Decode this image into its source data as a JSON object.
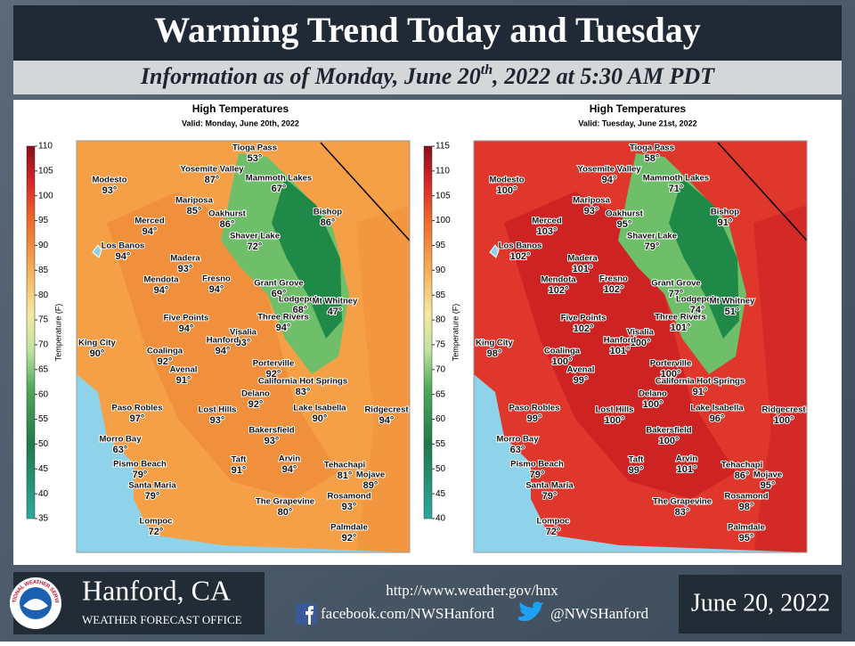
{
  "header": {
    "title": "Warming Trend Today and Tuesday",
    "subtitle_before": "Information as of Monday, June 20",
    "subtitle_sup": "th",
    "subtitle_after": ", 2022 at 5:30 AM PDT"
  },
  "panels": [
    {
      "title": "High Temperatures",
      "valid": "Valid: Monday, June 20th, 2022",
      "colorbar_label": "Temperature (F)",
      "colorbar_ticks": [
        35,
        40,
        45,
        50,
        55,
        60,
        65,
        70,
        75,
        80,
        85,
        90,
        95,
        100,
        105,
        110
      ],
      "cities": [
        {
          "name": "Tioga Pass",
          "temp": "53°"
        },
        {
          "name": "Yosemite Valley",
          "temp": "87°"
        },
        {
          "name": "Mammoth Lakes",
          "temp": "67°"
        },
        {
          "name": "Modesto",
          "temp": "93°"
        },
        {
          "name": "Mariposa",
          "temp": "85°"
        },
        {
          "name": "Oakhurst",
          "temp": "86°"
        },
        {
          "name": "Bishop",
          "temp": "86°"
        },
        {
          "name": "Merced",
          "temp": "94°"
        },
        {
          "name": "Shaver Lake",
          "temp": "72°"
        },
        {
          "name": "Los Banos",
          "temp": "94°"
        },
        {
          "name": "Madera",
          "temp": "93°"
        },
        {
          "name": "Fresno",
          "temp": "94°"
        },
        {
          "name": "Mendota",
          "temp": "94°"
        },
        {
          "name": "Grant Grove",
          "temp": "69°"
        },
        {
          "name": "Lodgepole",
          "temp": "68°"
        },
        {
          "name": "Mt Whitney",
          "temp": "47°"
        },
        {
          "name": "Five Points",
          "temp": "94°"
        },
        {
          "name": "Three Rivers",
          "temp": "94°"
        },
        {
          "name": "Visalia",
          "temp": "93°"
        },
        {
          "name": "Hanford",
          "temp": "94°"
        },
        {
          "name": "King City",
          "temp": "90°"
        },
        {
          "name": "Coalinga",
          "temp": "92°"
        },
        {
          "name": "Avenal",
          "temp": "91°"
        },
        {
          "name": "Porterville",
          "temp": "92°"
        },
        {
          "name": "California Hot Springs",
          "temp": "83°"
        },
        {
          "name": "Delano",
          "temp": "92°"
        },
        {
          "name": "Lost Hills",
          "temp": "93°"
        },
        {
          "name": "Lake Isabella",
          "temp": "90°"
        },
        {
          "name": "Ridgecrest",
          "temp": "94°"
        },
        {
          "name": "Paso Robles",
          "temp": "97°"
        },
        {
          "name": "Bakersfield",
          "temp": "93°"
        },
        {
          "name": "Morro Bay",
          "temp": "63°"
        },
        {
          "name": "Taft",
          "temp": "91°"
        },
        {
          "name": "Arvin",
          "temp": "94°"
        },
        {
          "name": "Tehachapi",
          "temp": "81°"
        },
        {
          "name": "Mojave",
          "temp": "89°"
        },
        {
          "name": "Pismo Beach",
          "temp": "79°"
        },
        {
          "name": "Santa Maria",
          "temp": "79°"
        },
        {
          "name": "The Grapevine",
          "temp": "80°"
        },
        {
          "name": "Rosamond",
          "temp": "93°"
        },
        {
          "name": "Lompoc",
          "temp": "72°"
        },
        {
          "name": "Palmdale",
          "temp": "92°"
        }
      ]
    },
    {
      "title": "High Temperatures",
      "valid": "Valid: Tuesday, June 21st, 2022",
      "colorbar_label": "Temperature (F)",
      "colorbar_ticks": [
        40,
        45,
        50,
        55,
        60,
        65,
        70,
        75,
        80,
        85,
        90,
        95,
        100,
        105,
        110,
        115
      ],
      "cities": [
        {
          "name": "Tioga Pass",
          "temp": "58°"
        },
        {
          "name": "Yosemite Valley",
          "temp": "94°"
        },
        {
          "name": "Mammoth Lakes",
          "temp": "71°"
        },
        {
          "name": "Modesto",
          "temp": "100°"
        },
        {
          "name": "Mariposa",
          "temp": "93°"
        },
        {
          "name": "Oakhurst",
          "temp": "95°"
        },
        {
          "name": "Bishop",
          "temp": "91°"
        },
        {
          "name": "Merced",
          "temp": "103°"
        },
        {
          "name": "Shaver Lake",
          "temp": "79°"
        },
        {
          "name": "Los Banos",
          "temp": "102°"
        },
        {
          "name": "Madera",
          "temp": "101°"
        },
        {
          "name": "Fresno",
          "temp": "102°"
        },
        {
          "name": "Mendota",
          "temp": "102°"
        },
        {
          "name": "Grant Grove",
          "temp": "77°"
        },
        {
          "name": "Lodgepole",
          "temp": "74°"
        },
        {
          "name": "Mt Whitney",
          "temp": "51°"
        },
        {
          "name": "Five Points",
          "temp": "102°"
        },
        {
          "name": "Three Rivers",
          "temp": "101°"
        },
        {
          "name": "Visalia",
          "temp": "100°"
        },
        {
          "name": "Hanford",
          "temp": "101°"
        },
        {
          "name": "King City",
          "temp": "98°"
        },
        {
          "name": "Coalinga",
          "temp": "100°"
        },
        {
          "name": "Avenal",
          "temp": "99°"
        },
        {
          "name": "Porterville",
          "temp": "100°"
        },
        {
          "name": "California Hot Springs",
          "temp": "91°"
        },
        {
          "name": "Delano",
          "temp": "100°"
        },
        {
          "name": "Lost Hills",
          "temp": "100°"
        },
        {
          "name": "Lake Isabella",
          "temp": "96°"
        },
        {
          "name": "Ridgecrest",
          "temp": "100°"
        },
        {
          "name": "Paso Robles",
          "temp": "99°"
        },
        {
          "name": "Bakersfield",
          "temp": "100°"
        },
        {
          "name": "Morro Bay",
          "temp": "63°"
        },
        {
          "name": "Taft",
          "temp": "99°"
        },
        {
          "name": "Arvin",
          "temp": "101°"
        },
        {
          "name": "Tehachapi",
          "temp": "86°"
        },
        {
          "name": "Mojave",
          "temp": "95°"
        },
        {
          "name": "Pismo Beach",
          "temp": "79°"
        },
        {
          "name": "Santa Maria",
          "temp": "79°"
        },
        {
          "name": "The Grapevine",
          "temp": "83°"
        },
        {
          "name": "Rosamond",
          "temp": "98°"
        },
        {
          "name": "Lompoc",
          "temp": "72°"
        },
        {
          "name": "Palmdale",
          "temp": "95°"
        }
      ]
    }
  ],
  "footer": {
    "logo_text": "NATIONAL WEATHER SERVICE",
    "office": "Hanford, CA",
    "office_sub": "WEATHER FORECAST OFFICE",
    "url": "http://www.weather.gov/hnx",
    "facebook": "facebook.com/NWSHanford",
    "twitter": "@NWSHanford",
    "date": "June 20, 2022"
  }
}
